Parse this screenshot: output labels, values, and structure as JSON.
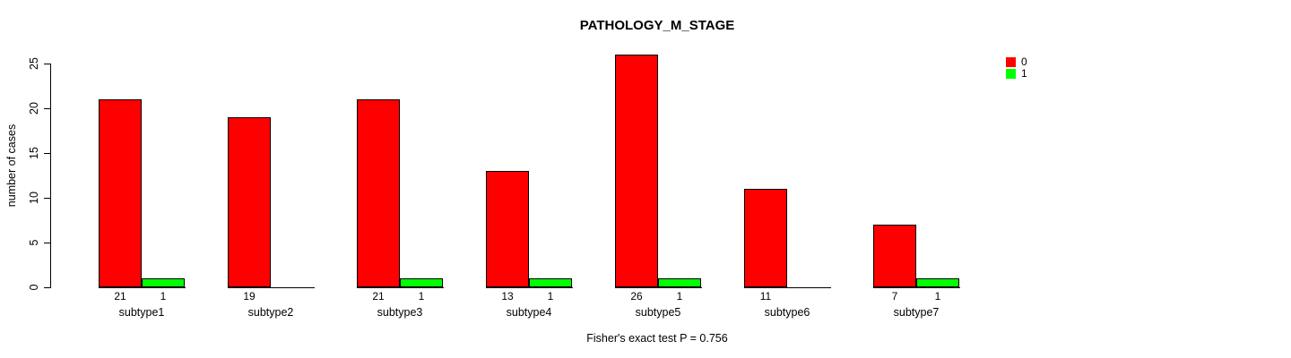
{
  "title": "PATHOLOGY_M_STAGE",
  "caption": "Fisher's exact test P = 0.756",
  "y_axis": {
    "label": "number of cases",
    "ticks": [
      0,
      5,
      10,
      15,
      20,
      25
    ]
  },
  "legend": {
    "items": [
      {
        "label": "0",
        "color": "#ff0000"
      },
      {
        "label": "1",
        "color": "#00ff00"
      }
    ]
  },
  "chart_data": {
    "type": "bar",
    "title": "PATHOLOGY_M_STAGE",
    "categories": [
      "subtype1",
      "subtype2",
      "subtype3",
      "subtype4",
      "subtype5",
      "subtype6",
      "subtype7"
    ],
    "series": [
      {
        "name": "0",
        "color": "#ff0000",
        "values": [
          21,
          19,
          21,
          13,
          26,
          11,
          7
        ]
      },
      {
        "name": "1",
        "color": "#00ff00",
        "values": [
          1,
          0,
          1,
          1,
          1,
          0,
          1
        ]
      }
    ],
    "xlabel": "",
    "ylabel": "number of cases",
    "ylim": [
      0,
      25
    ],
    "yticks": [
      0,
      5,
      10,
      15,
      20,
      25
    ],
    "grid": false,
    "legend_position": "top-right",
    "bar_value_labels": "counts shown below each bar; zero counts omitted",
    "annotation": "Fisher's exact test P = 0.756"
  }
}
